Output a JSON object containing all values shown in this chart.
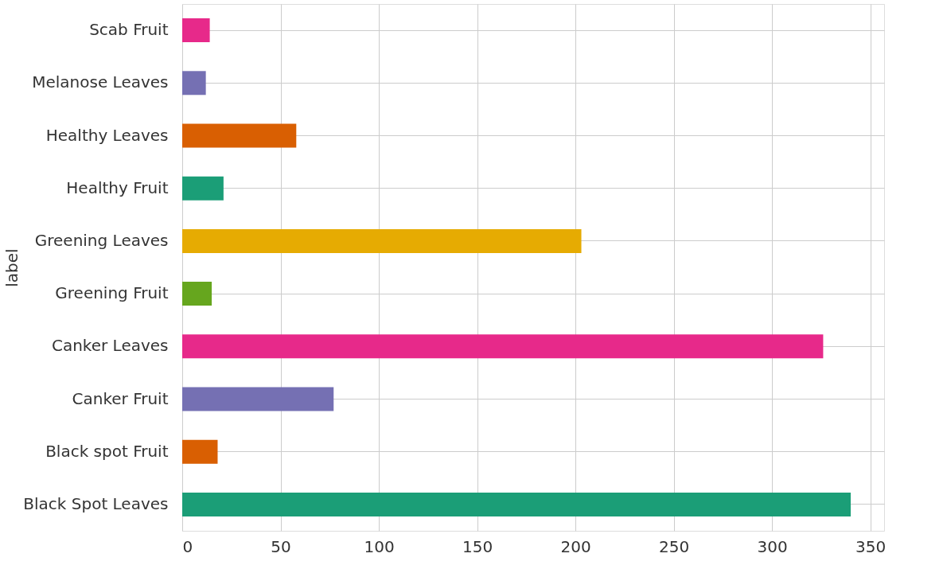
{
  "chart_data": {
    "type": "bar",
    "orientation": "horizontal",
    "ylabel": "label",
    "categories": [
      "Scab Fruit",
      "Melanose Leaves",
      "Healthy Leaves",
      "Healthy Fruit",
      "Greening Leaves",
      "Greening Fruit",
      "Canker Leaves",
      "Canker Fruit",
      "Black spot Fruit",
      "Black Spot Leaves"
    ],
    "values": [
      14,
      12,
      58,
      21,
      203,
      15,
      326,
      77,
      18,
      340
    ],
    "colors": [
      "#e7298a",
      "#7570b3",
      "#d95f02",
      "#1b9e77",
      "#e6ab02",
      "#66a61e",
      "#e7298a",
      "#7570b3",
      "#d95f02",
      "#1b9e77"
    ],
    "xlim": [
      0,
      357
    ],
    "xticks": [
      0,
      50,
      100,
      150,
      200,
      250,
      300,
      350
    ],
    "grid": true
  }
}
